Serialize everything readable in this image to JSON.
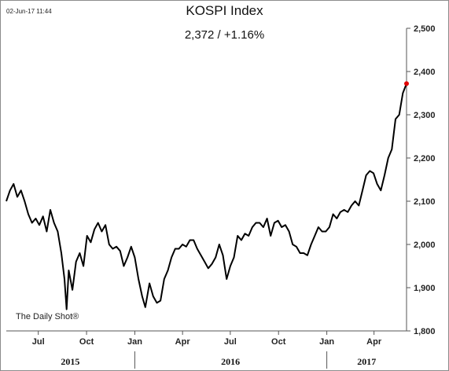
{
  "timestamp": "02-Jun-17 11:44",
  "title": "KOSPI Index",
  "subtitle": "2,372  /  +1.16%",
  "watermark": "The Daily Shot®",
  "colors": {
    "line": "#000000",
    "last_point": "#e00000",
    "axis": "#555555"
  },
  "chart_data": {
    "type": "line",
    "title": "KOSPI Index",
    "subtitle": "2,372  /  +1.16%",
    "ylim": [
      1800,
      2500
    ],
    "yticks": [
      1800,
      1900,
      2000,
      2100,
      2200,
      2300,
      2400,
      2500
    ],
    "ytick_labels": [
      "1,800",
      "1,900",
      "2,000",
      "2,100",
      "2,200",
      "2,300",
      "2,400",
      "2,500"
    ],
    "y_axis_side": "right",
    "grid": false,
    "xlim": [
      "2015-05-01",
      "2017-06-02"
    ],
    "xticks": [
      {
        "date": "2015-07-01",
        "label": "Jul"
      },
      {
        "date": "2015-10-01",
        "label": "Oct"
      },
      {
        "date": "2016-01-01",
        "label": "Jan"
      },
      {
        "date": "2016-04-01",
        "label": "Apr"
      },
      {
        "date": "2016-07-01",
        "label": "Jul"
      },
      {
        "date": "2016-10-01",
        "label": "Oct"
      },
      {
        "date": "2017-01-01",
        "label": "Jan"
      },
      {
        "date": "2017-04-01",
        "label": "Apr"
      }
    ],
    "years": [
      {
        "label": "2015",
        "from": "2015-05-01",
        "to": "2015-12-31"
      },
      {
        "label": "2016",
        "from": "2016-01-01",
        "to": "2016-12-31"
      },
      {
        "label": "2017",
        "from": "2017-01-01",
        "to": "2017-06-02"
      }
    ],
    "series": [
      {
        "x": [
          "2015-05-01",
          "2015-05-08",
          "2015-05-15",
          "2015-05-22",
          "2015-05-29",
          "2015-06-05",
          "2015-06-12",
          "2015-06-19",
          "2015-06-26",
          "2015-07-03",
          "2015-07-10",
          "2015-07-17",
          "2015-07-24",
          "2015-07-31",
          "2015-08-07",
          "2015-08-14",
          "2015-08-20",
          "2015-08-24",
          "2015-08-28",
          "2015-09-04",
          "2015-09-11",
          "2015-09-18",
          "2015-09-25",
          "2015-10-02",
          "2015-10-09",
          "2015-10-16",
          "2015-10-23",
          "2015-10-30",
          "2015-11-06",
          "2015-11-13",
          "2015-11-20",
          "2015-11-27",
          "2015-12-04",
          "2015-12-11",
          "2015-12-18",
          "2015-12-25",
          "2016-01-01",
          "2016-01-08",
          "2016-01-15",
          "2016-01-21",
          "2016-01-29",
          "2016-02-05",
          "2016-02-12",
          "2016-02-19",
          "2016-02-26",
          "2016-03-04",
          "2016-03-11",
          "2016-03-18",
          "2016-03-25",
          "2016-04-01",
          "2016-04-08",
          "2016-04-15",
          "2016-04-22",
          "2016-04-29",
          "2016-05-06",
          "2016-05-13",
          "2016-05-20",
          "2016-05-27",
          "2016-06-03",
          "2016-06-10",
          "2016-06-17",
          "2016-06-24",
          "2016-07-01",
          "2016-07-08",
          "2016-07-15",
          "2016-07-22",
          "2016-07-29",
          "2016-08-05",
          "2016-08-12",
          "2016-08-19",
          "2016-08-26",
          "2016-09-02",
          "2016-09-09",
          "2016-09-16",
          "2016-09-23",
          "2016-09-30",
          "2016-10-07",
          "2016-10-14",
          "2016-10-21",
          "2016-10-28",
          "2016-11-04",
          "2016-11-11",
          "2016-11-18",
          "2016-11-25",
          "2016-12-02",
          "2016-12-09",
          "2016-12-16",
          "2016-12-23",
          "2016-12-30",
          "2017-01-06",
          "2017-01-13",
          "2017-01-20",
          "2017-01-27",
          "2017-02-03",
          "2017-02-10",
          "2017-02-17",
          "2017-02-24",
          "2017-03-03",
          "2017-03-10",
          "2017-03-17",
          "2017-03-24",
          "2017-03-31",
          "2017-04-07",
          "2017-04-14",
          "2017-04-21",
          "2017-04-28",
          "2017-05-05",
          "2017-05-12",
          "2017-05-19",
          "2017-05-26",
          "2017-06-02"
        ],
        "y": [
          2100,
          2125,
          2140,
          2110,
          2125,
          2100,
          2070,
          2050,
          2060,
          2045,
          2065,
          2030,
          2080,
          2050,
          2030,
          1980,
          1920,
          1850,
          1940,
          1895,
          1960,
          1980,
          1950,
          2020,
          2005,
          2035,
          2050,
          2030,
          2045,
          2000,
          1990,
          1995,
          1985,
          1950,
          1970,
          1995,
          1970,
          1920,
          1880,
          1855,
          1910,
          1880,
          1865,
          1870,
          1920,
          1940,
          1970,
          1990,
          1990,
          2000,
          1995,
          2010,
          2010,
          1990,
          1975,
          1960,
          1945,
          1955,
          1970,
          2000,
          1975,
          1920,
          1950,
          1970,
          2020,
          2010,
          2025,
          2020,
          2040,
          2050,
          2050,
          2040,
          2060,
          2020,
          2050,
          2055,
          2040,
          2045,
          2030,
          2000,
          1995,
          1980,
          1980,
          1975,
          2000,
          2020,
          2040,
          2030,
          2030,
          2040,
          2070,
          2060,
          2075,
          2080,
          2075,
          2090,
          2100,
          2090,
          2125,
          2160,
          2170,
          2165,
          2140,
          2125,
          2160,
          2200,
          2220,
          2290,
          2300,
          2350,
          2372
        ]
      }
    ],
    "last_value": 2372
  }
}
